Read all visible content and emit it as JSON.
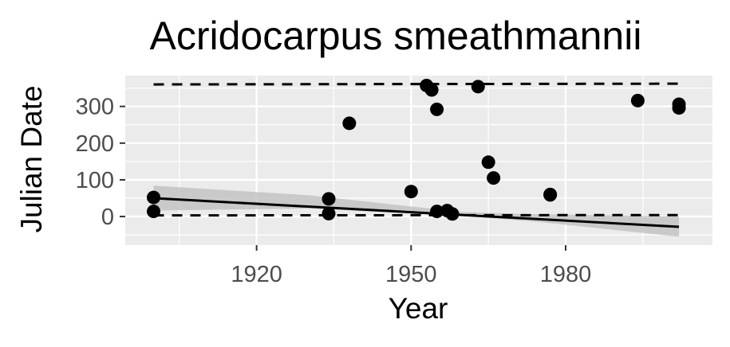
{
  "chart_data": {
    "type": "scatter",
    "title": "Acridocarpus smeathmannii",
    "xlabel": "Year",
    "ylabel": "Julian Date",
    "xlim": [
      1894.5,
      2008.5
    ],
    "ylim": [
      -78,
      384
    ],
    "x_ticks": [
      1920,
      1950,
      1980
    ],
    "x_tick_labels": [
      "1920",
      "1950",
      "1980"
    ],
    "y_ticks": [
      0,
      100,
      200,
      300
    ],
    "y_tick_labels": [
      "0",
      "100",
      "200",
      "300"
    ],
    "grid": true,
    "legend": "none",
    "points": [
      {
        "x": 1900,
        "y": 52
      },
      {
        "x": 1900,
        "y": 14
      },
      {
        "x": 1934,
        "y": 48
      },
      {
        "x": 1934,
        "y": 8
      },
      {
        "x": 1938,
        "y": 254
      },
      {
        "x": 1950,
        "y": 68
      },
      {
        "x": 1953,
        "y": 357
      },
      {
        "x": 1954,
        "y": 345
      },
      {
        "x": 1955,
        "y": 292
      },
      {
        "x": 1955,
        "y": 14
      },
      {
        "x": 1957,
        "y": 16
      },
      {
        "x": 1958,
        "y": 7
      },
      {
        "x": 1963,
        "y": 354
      },
      {
        "x": 1965,
        "y": 148
      },
      {
        "x": 1966,
        "y": 105
      },
      {
        "x": 1977,
        "y": 60
      },
      {
        "x": 1977,
        "y": 59
      },
      {
        "x": 1994,
        "y": 316
      },
      {
        "x": 2002,
        "y": 306
      },
      {
        "x": 2002,
        "y": 296
      }
    ],
    "trend_line": {
      "x": [
        1900,
        2002
      ],
      "y": [
        50,
        -28
      ]
    },
    "confidence_band": {
      "x": [
        1900,
        1930,
        1960,
        1975,
        2002
      ],
      "lower": [
        16,
        22,
        2,
        -15,
        -55
      ],
      "upper": [
        84,
        58,
        12,
        6,
        0
      ]
    },
    "dashed_lines": [
      {
        "x": [
          1900,
          2002
        ],
        "y": [
          360,
          362
        ]
      },
      {
        "x": [
          1900,
          2002
        ],
        "y": [
          3,
          4
        ]
      }
    ],
    "colors": {
      "panel": "#ebebeb",
      "grid": "#ffffff",
      "points": "#000000",
      "line": "#000000",
      "band": "#bdbdbd"
    }
  }
}
